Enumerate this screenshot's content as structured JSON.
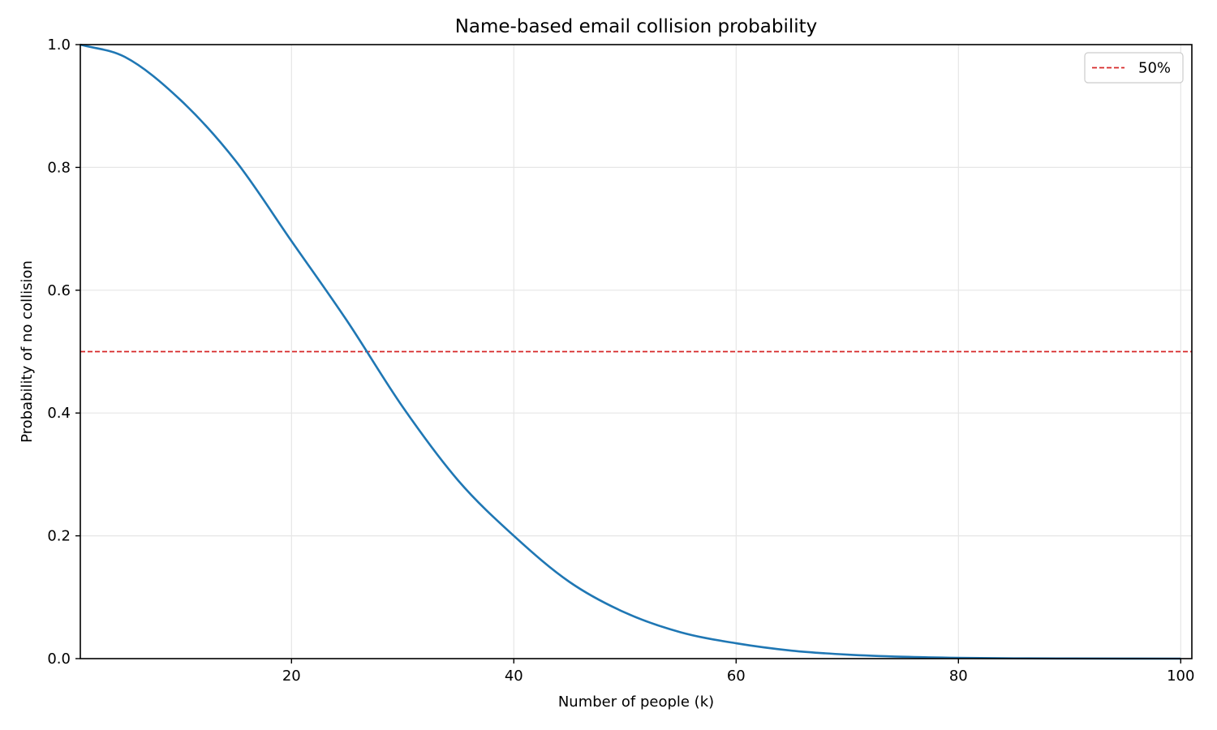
{
  "chart_data": {
    "type": "line",
    "title": "Name-based email collision probability",
    "xlabel": "Number of people (k)",
    "ylabel": "Probability of no collision",
    "xlim": [
      1,
      101
    ],
    "ylim": [
      0.0,
      1.0
    ],
    "xticks": [
      20,
      40,
      60,
      80,
      100
    ],
    "xtick_labels": [
      "20",
      "40",
      "60",
      "80",
      "100"
    ],
    "yticks": [
      0.0,
      0.2,
      0.4,
      0.6,
      0.8,
      1.0
    ],
    "ytick_labels": [
      "0.0",
      "0.2",
      "0.4",
      "0.6",
      "0.8",
      "1.0"
    ],
    "grid": true,
    "legend_position": "top-right",
    "series": [
      {
        "color": "#1f77b4",
        "style": "solid",
        "x": [
          1,
          5,
          10,
          15,
          20,
          25,
          30,
          35,
          40,
          45,
          50,
          55,
          60,
          65,
          70,
          75,
          80,
          85,
          90,
          95,
          100
        ],
        "y": [
          1.0,
          0.98,
          0.91,
          0.81,
          0.68,
          0.55,
          0.41,
          0.29,
          0.2,
          0.125,
          0.075,
          0.043,
          0.025,
          0.013,
          0.0065,
          0.003,
          0.0013,
          0.0005,
          0.0002,
          0.0001,
          0.0
        ]
      }
    ],
    "reference_lines": [
      {
        "name": "50%",
        "orientation": "horizontal",
        "y": 0.5,
        "color": "#d62728",
        "style": "dashed"
      }
    ],
    "colors": {
      "axes": "#000000",
      "grid": "#e6e6e6",
      "background": "#ffffff"
    }
  }
}
